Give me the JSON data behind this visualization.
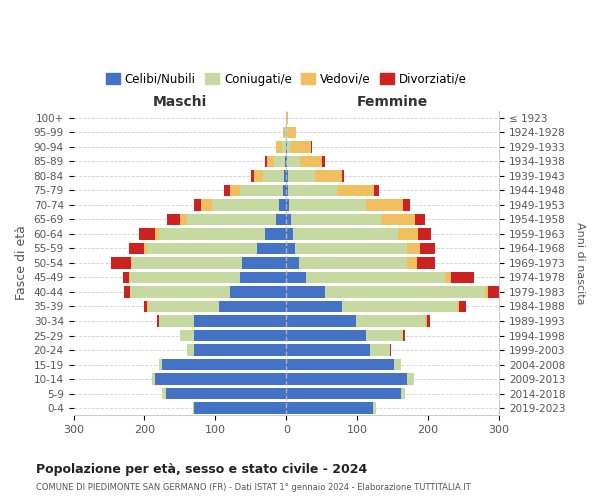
{
  "age_groups": [
    "0-4",
    "5-9",
    "10-14",
    "15-19",
    "20-24",
    "25-29",
    "30-34",
    "35-39",
    "40-44",
    "45-49",
    "50-54",
    "55-59",
    "60-64",
    "65-69",
    "70-74",
    "75-79",
    "80-84",
    "85-89",
    "90-94",
    "95-99",
    "100+"
  ],
  "birth_years": [
    "2019-2023",
    "2014-2018",
    "2009-2013",
    "2004-2008",
    "1999-2003",
    "1994-1998",
    "1989-1993",
    "1984-1988",
    "1979-1983",
    "1974-1978",
    "1969-1973",
    "1964-1968",
    "1959-1963",
    "1954-1958",
    "1949-1953",
    "1944-1948",
    "1939-1943",
    "1934-1938",
    "1929-1933",
    "1924-1928",
    "≤ 1923"
  ],
  "colors": {
    "celibe": "#4472C4",
    "coniugato": "#C5D9A0",
    "vedovo": "#F0C060",
    "divorziato": "#CC2222"
  },
  "maschi": {
    "celibe": [
      130,
      170,
      185,
      175,
      130,
      130,
      130,
      95,
      80,
      65,
      62,
      42,
      30,
      15,
      10,
      5,
      3,
      2,
      1,
      0,
      0
    ],
    "coniugato": [
      2,
      5,
      5,
      5,
      10,
      20,
      50,
      100,
      140,
      155,
      155,
      155,
      150,
      125,
      95,
      60,
      30,
      15,
      5,
      2,
      0
    ],
    "vedovo": [
      0,
      0,
      0,
      0,
      0,
      0,
      0,
      1,
      1,
      2,
      2,
      3,
      5,
      10,
      15,
      15,
      12,
      10,
      8,
      2,
      0
    ],
    "divorziato": [
      0,
      0,
      0,
      0,
      0,
      0,
      2,
      5,
      8,
      8,
      28,
      22,
      22,
      18,
      10,
      8,
      5,
      3,
      0,
      0,
      0
    ]
  },
  "femmine": {
    "celibe": [
      122,
      162,
      170,
      152,
      118,
      112,
      98,
      78,
      55,
      28,
      18,
      12,
      10,
      6,
      4,
      3,
      2,
      1,
      1,
      0,
      0
    ],
    "coniugato": [
      5,
      5,
      10,
      10,
      28,
      52,
      98,
      162,
      225,
      196,
      152,
      158,
      148,
      128,
      108,
      68,
      38,
      18,
      6,
      3,
      1
    ],
    "vedovo": [
      0,
      0,
      0,
      0,
      0,
      1,
      2,
      3,
      4,
      8,
      14,
      18,
      28,
      48,
      52,
      52,
      38,
      32,
      28,
      10,
      2
    ],
    "divorziato": [
      0,
      0,
      0,
      0,
      1,
      2,
      4,
      10,
      28,
      32,
      26,
      22,
      18,
      14,
      10,
      8,
      4,
      4,
      1,
      0,
      0
    ]
  },
  "title": "Popolazione per età, sesso e stato civile - 2024",
  "subtitle": "COMUNE DI PIEDIMONTE SAN GERMANO (FR) - Dati ISTAT 1° gennaio 2024 - Elaborazione TUTTITALIA.IT",
  "xlabel_left": "Maschi",
  "xlabel_right": "Femmine",
  "ylabel_left": "Fasce di età",
  "ylabel_right": "Anni di nascita",
  "xlim": 300,
  "bg_color": "#ffffff",
  "grid_color": "#cccccc",
  "legend_labels": [
    "Celibi/Nubili",
    "Coniugati/e",
    "Vedovi/e",
    "Divorziati/e"
  ]
}
